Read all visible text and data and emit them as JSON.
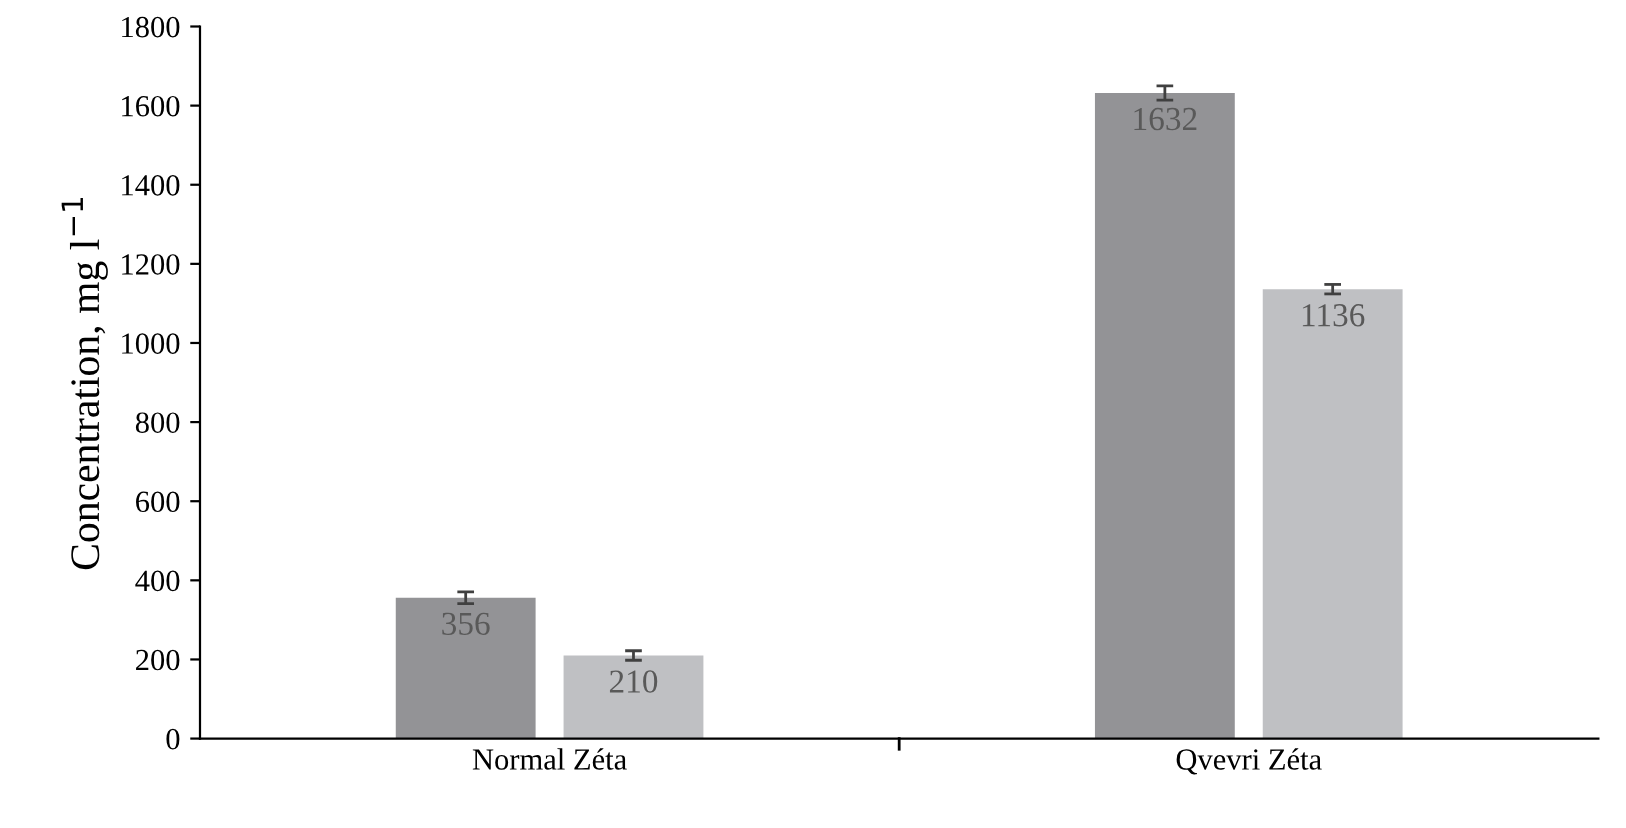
{
  "chart_data": {
    "type": "bar",
    "ylabel": "Concentration, mg l$^{−1}$",
    "categories": [
      "Normal Zéta",
      "Qvevri Zéta"
    ],
    "series": [
      {
        "color": "#939396",
        "values": [
          356,
          1632
        ],
        "errors": [
          15,
          18
        ]
      },
      {
        "color": "#bfc0c3",
        "values": [
          210,
          1136
        ],
        "errors": [
          12,
          12
        ]
      }
    ],
    "ylim": [
      0,
      1800
    ],
    "yticks": [
      0,
      200,
      400,
      600,
      800,
      1000,
      1200,
      1400,
      1600,
      1800
    ],
    "data_labels": true,
    "grid": false,
    "legend": false
  }
}
